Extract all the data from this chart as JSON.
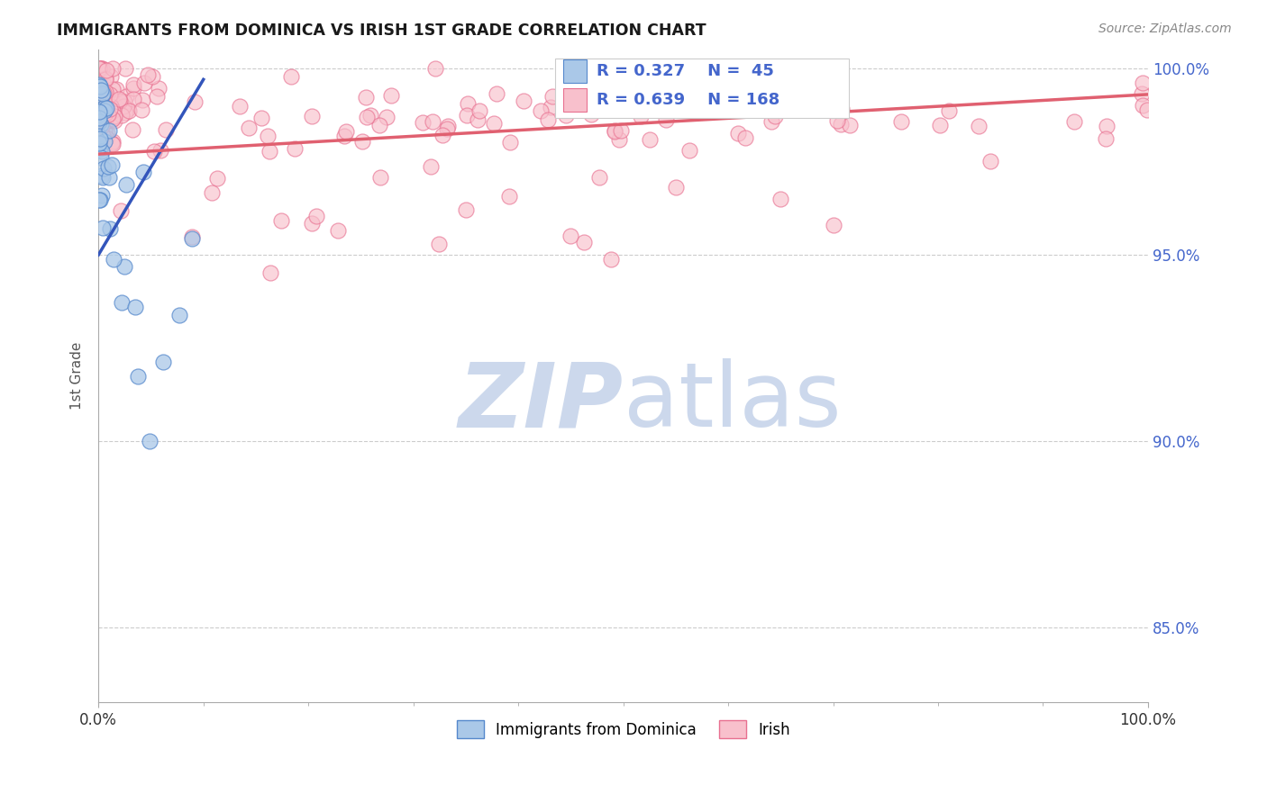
{
  "title": "IMMIGRANTS FROM DOMINICA VS IRISH 1ST GRADE CORRELATION CHART",
  "source_text": "Source: ZipAtlas.com",
  "ylabel": "1st Grade",
  "legend_labels": [
    "Immigrants from Dominica",
    "Irish"
  ],
  "r_dominica": "R = 0.327",
  "n_dominica": "N =  45",
  "r_irish": "R = 0.639",
  "n_irish": "N = 168",
  "color_dominica_face": "#aac8e8",
  "color_dominica_edge": "#5588cc",
  "color_irish_face": "#f8c0cc",
  "color_irish_edge": "#e87090",
  "line_color_dominica": "#3355bb",
  "line_color_irish": "#e06070",
  "tick_color": "#4466cc",
  "bg_color": "#ffffff",
  "watermark_color": "#ccd8ec",
  "grid_color": "#cccccc",
  "xlim": [
    0.0,
    1.0
  ],
  "ylim": [
    0.83,
    1.005
  ],
  "y_ticks": [
    0.85,
    0.9,
    0.95,
    1.0
  ],
  "y_tick_labels": [
    "85.0%",
    "90.0%",
    "95.0%",
    "100.0%"
  ],
  "x_tick_labels_left": "0.0%",
  "x_tick_labels_right": "100.0%"
}
